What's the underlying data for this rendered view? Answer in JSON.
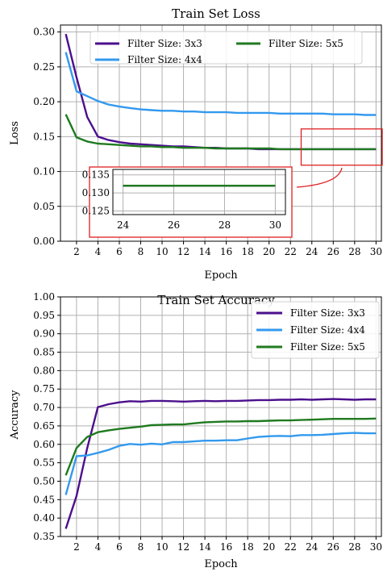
{
  "chart_data": [
    {
      "type": "line",
      "title": "Train Set Loss",
      "xlabel": "Epoch",
      "ylabel": "Loss",
      "xlim": [
        0.5,
        30.5
      ],
      "ylim": [
        0.0,
        0.31
      ],
      "xticks": [
        2,
        4,
        6,
        8,
        10,
        12,
        14,
        16,
        18,
        20,
        22,
        24,
        26,
        28,
        30
      ],
      "yticks": [
        0.0,
        0.05,
        0.1,
        0.15,
        0.2,
        0.25,
        0.3
      ],
      "ytick_labels": [
        "0.00",
        "0.05",
        "0.10",
        "0.15",
        "0.20",
        "0.25",
        "0.30"
      ],
      "grid": true,
      "legend": "top",
      "x": [
        1,
        2,
        3,
        4,
        5,
        6,
        7,
        8,
        9,
        10,
        11,
        12,
        13,
        14,
        15,
        16,
        17,
        18,
        19,
        20,
        21,
        22,
        23,
        24,
        25,
        26,
        27,
        28,
        29,
        30
      ],
      "series": [
        {
          "name": "Filter Size: 3x3",
          "color": "#4b0f8c",
          "values": [
            0.297,
            0.235,
            0.178,
            0.15,
            0.145,
            0.142,
            0.14,
            0.139,
            0.138,
            0.137,
            0.136,
            0.136,
            0.135,
            0.134,
            0.134,
            0.133,
            0.133,
            0.133,
            0.132,
            0.132,
            0.132,
            0.132,
            0.132,
            0.132,
            0.132,
            0.132,
            0.132,
            0.132,
            0.132,
            0.132
          ]
        },
        {
          "name": "Filter Size: 4x4",
          "color": "#3399ee",
          "values": [
            0.271,
            0.215,
            0.208,
            0.201,
            0.196,
            0.193,
            0.191,
            0.189,
            0.188,
            0.187,
            0.187,
            0.186,
            0.186,
            0.185,
            0.185,
            0.185,
            0.184,
            0.184,
            0.184,
            0.184,
            0.183,
            0.183,
            0.183,
            0.183,
            0.183,
            0.182,
            0.182,
            0.182,
            0.181,
            0.181
          ]
        },
        {
          "name": "Filter Size: 5x5",
          "color": "#1f7a1f",
          "values": [
            0.182,
            0.149,
            0.143,
            0.14,
            0.139,
            0.138,
            0.137,
            0.136,
            0.136,
            0.135,
            0.135,
            0.134,
            0.134,
            0.134,
            0.133,
            0.133,
            0.133,
            0.133,
            0.133,
            0.133,
            0.132,
            0.132,
            0.132,
            0.132,
            0.132,
            0.132,
            0.132,
            0.132,
            0.132,
            0.132
          ]
        }
      ],
      "inset": {
        "xlim": [
          23.6,
          30.4
        ],
        "ylim": [
          0.124,
          0.1365
        ],
        "xticks": [
          24,
          26,
          28,
          30
        ],
        "yticks": [
          0.125,
          0.13,
          0.135
        ],
        "ytick_labels": [
          "0.125",
          "0.130",
          "0.135"
        ],
        "highlight_xlim": [
          23,
          30.5
        ],
        "highlight_ylim": [
          0.109,
          0.161
        ]
      }
    },
    {
      "type": "line",
      "title": "Train Set Accuracy",
      "xlabel": "Epoch",
      "ylabel": "Accuracy",
      "xlim": [
        0.5,
        30.5
      ],
      "ylim": [
        0.35,
        1.0
      ],
      "xticks": [
        2,
        4,
        6,
        8,
        10,
        12,
        14,
        16,
        18,
        20,
        22,
        24,
        26,
        28,
        30
      ],
      "yticks": [
        0.35,
        0.4,
        0.45,
        0.5,
        0.55,
        0.6,
        0.65,
        0.7,
        0.75,
        0.8,
        0.85,
        0.9,
        0.95,
        1.0
      ],
      "ytick_labels": [
        "0.35",
        "0.40",
        "0.45",
        "0.50",
        "0.55",
        "0.60",
        "0.65",
        "0.70",
        "0.75",
        "0.80",
        "0.85",
        "0.90",
        "0.95",
        "1.00"
      ],
      "grid": true,
      "legend": "top-right",
      "x": [
        1,
        2,
        3,
        4,
        5,
        6,
        7,
        8,
        9,
        10,
        11,
        12,
        13,
        14,
        15,
        16,
        17,
        18,
        19,
        20,
        21,
        22,
        23,
        24,
        25,
        26,
        27,
        28,
        29,
        30
      ],
      "series": [
        {
          "name": "Filter Size: 3x3",
          "color": "#4b0f8c",
          "values": [
            0.371,
            0.46,
            0.59,
            0.701,
            0.709,
            0.714,
            0.717,
            0.716,
            0.718,
            0.718,
            0.717,
            0.716,
            0.717,
            0.718,
            0.717,
            0.718,
            0.718,
            0.719,
            0.72,
            0.72,
            0.721,
            0.721,
            0.722,
            0.721,
            0.722,
            0.723,
            0.722,
            0.721,
            0.722,
            0.722
          ]
        },
        {
          "name": "Filter Size: 4x4",
          "color": "#3399ee",
          "values": [
            0.463,
            0.568,
            0.57,
            0.577,
            0.585,
            0.596,
            0.601,
            0.599,
            0.602,
            0.6,
            0.606,
            0.606,
            0.608,
            0.61,
            0.61,
            0.611,
            0.611,
            0.616,
            0.62,
            0.622,
            0.623,
            0.622,
            0.625,
            0.625,
            0.626,
            0.628,
            0.63,
            0.631,
            0.63,
            0.63
          ]
        },
        {
          "name": "Filter Size: 5x5",
          "color": "#1f7a1f",
          "values": [
            0.516,
            0.59,
            0.62,
            0.633,
            0.638,
            0.642,
            0.645,
            0.648,
            0.652,
            0.653,
            0.654,
            0.654,
            0.657,
            0.66,
            0.661,
            0.662,
            0.662,
            0.663,
            0.663,
            0.664,
            0.665,
            0.665,
            0.666,
            0.667,
            0.668,
            0.669,
            0.669,
            0.669,
            0.669,
            0.67
          ]
        }
      ]
    }
  ]
}
